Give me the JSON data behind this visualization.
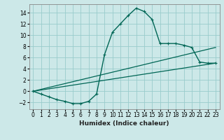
{
  "xlabel": "Humidex (Indice chaleur)",
  "background_color": "#cce8e8",
  "grid_color": "#99cccc",
  "line_color": "#006655",
  "xlim": [
    -0.5,
    23.5
  ],
  "ylim": [
    -3.2,
    15.5
  ],
  "xticks": [
    0,
    1,
    2,
    3,
    4,
    5,
    6,
    7,
    8,
    9,
    10,
    11,
    12,
    13,
    14,
    15,
    16,
    17,
    18,
    19,
    20,
    21,
    22,
    23
  ],
  "yticks": [
    -2,
    0,
    2,
    4,
    6,
    8,
    10,
    12,
    14
  ],
  "series1_x": [
    0,
    1,
    2,
    3,
    4,
    5,
    6,
    7,
    8,
    9,
    10,
    11,
    12,
    13,
    14,
    15,
    16,
    17,
    18,
    19,
    20,
    21,
    22,
    23
  ],
  "series1_y": [
    0,
    -0.5,
    -1.0,
    -1.5,
    -1.8,
    -2.2,
    -2.2,
    -1.8,
    -0.5,
    6.5,
    10.5,
    12.0,
    13.5,
    14.8,
    14.2,
    12.8,
    8.5,
    8.5,
    8.5,
    8.2,
    7.8,
    5.2,
    5.0,
    5.0
  ],
  "series2_x": [
    0,
    23
  ],
  "series2_y": [
    0,
    5.0
  ],
  "series3_x": [
    0,
    23
  ],
  "series3_y": [
    0,
    7.8
  ],
  "xlabel_fontsize": 6.5,
  "tick_fontsize": 5.5,
  "xlabel_fontweight": "bold"
}
